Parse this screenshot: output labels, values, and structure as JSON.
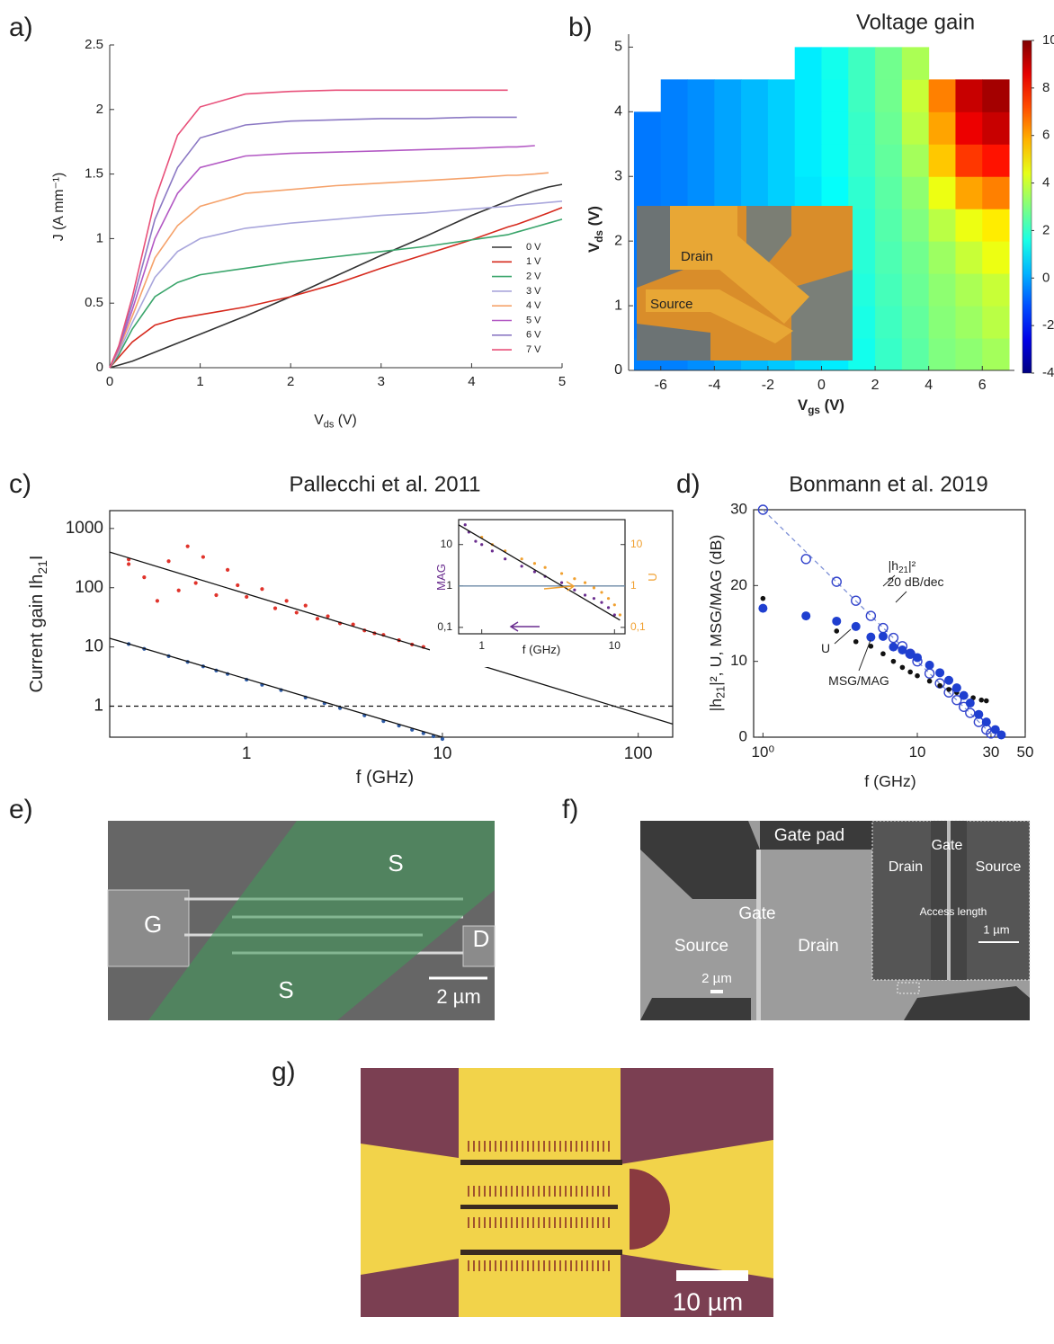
{
  "chart_data": [
    {
      "type": "line",
      "panel": "a)",
      "xlabel": [
        "V",
        "ds",
        " (V)"
      ],
      "ylabel": [
        "J (A mm⁻¹)"
      ],
      "xlim": [
        0,
        5
      ],
      "ylim": [
        0,
        2.5
      ],
      "xticks": [
        0,
        1,
        2,
        3,
        4,
        5
      ],
      "yticks": [
        0,
        0.5,
        1,
        1.5,
        2,
        2.5
      ],
      "legend": "lower right",
      "x": [
        0,
        0.1,
        0.25,
        0.5,
        0.75,
        1,
        1.5,
        2,
        2.5,
        3,
        3.5,
        4,
        4.4,
        4.5,
        4.7,
        4.85,
        5
      ],
      "series": [
        {
          "name": "0 V",
          "color": "#333333",
          "values": [
            0,
            0.02,
            0.05,
            0.12,
            0.19,
            0.26,
            0.4,
            0.55,
            0.71,
            0.87,
            1.02,
            1.18,
            1.29,
            1.32,
            1.37,
            1.4,
            1.42
          ]
        },
        {
          "name": "1 V",
          "color": "#d62a1e",
          "values": [
            0,
            0.08,
            0.2,
            0.33,
            0.38,
            0.41,
            0.47,
            0.55,
            0.65,
            0.77,
            0.88,
            0.99,
            1.09,
            1.11,
            1.16,
            1.2,
            1.24
          ]
        },
        {
          "name": "2 V",
          "color": "#3aa56b",
          "values": [
            0,
            0.1,
            0.3,
            0.55,
            0.66,
            0.72,
            0.77,
            0.82,
            0.86,
            0.9,
            0.94,
            0.99,
            1.03,
            1.05,
            1.09,
            1.12,
            1.15
          ]
        },
        {
          "name": "3 V",
          "color": "#a9a6dc",
          "values": [
            0,
            0.12,
            0.35,
            0.7,
            0.9,
            1.0,
            1.08,
            1.12,
            1.15,
            1.18,
            1.2,
            1.23,
            1.25,
            1.26,
            1.27,
            1.28,
            1.29
          ]
        },
        {
          "name": "4 V",
          "color": "#f5a26b",
          "values": [
            0,
            0.14,
            0.4,
            0.85,
            1.1,
            1.25,
            1.35,
            1.38,
            1.41,
            1.43,
            1.45,
            1.47,
            1.49,
            1.49,
            1.5,
            1.51,
            null
          ]
        },
        {
          "name": "5 V",
          "color": "#b359c4",
          "values": [
            0,
            0.15,
            0.45,
            1.0,
            1.35,
            1.55,
            1.64,
            1.66,
            1.67,
            1.68,
            1.69,
            1.7,
            1.71,
            1.71,
            1.72,
            null,
            null
          ]
        },
        {
          "name": "6 V",
          "color": "#8c79c4",
          "values": [
            0,
            0.16,
            0.5,
            1.15,
            1.55,
            1.78,
            1.88,
            1.91,
            1.92,
            1.93,
            1.93,
            1.94,
            1.94,
            1.94,
            null,
            null,
            null
          ]
        },
        {
          "name": "7 V",
          "color": "#e8507a",
          "values": [
            0,
            0.17,
            0.55,
            1.3,
            1.8,
            2.02,
            2.12,
            2.14,
            2.15,
            2.15,
            2.15,
            2.15,
            2.15,
            null,
            null,
            null,
            null
          ]
        }
      ]
    },
    {
      "type": "heatmap",
      "panel": "b)",
      "title": "Voltage gain",
      "xlabel": [
        "V",
        "gs",
        " (V)"
      ],
      "ylabel": [
        "V",
        "ds",
        " (V)"
      ],
      "xlim": [
        -7.2,
        7.2
      ],
      "ylim": [
        0,
        5.2
      ],
      "xticks": [
        -6,
        -4,
        -2,
        0,
        2,
        4,
        6
      ],
      "yticks": [
        0,
        1,
        2,
        3,
        4,
        5
      ],
      "colormap": "jet",
      "zlim": [
        -4,
        10
      ],
      "zticks": [
        -4,
        -2,
        0,
        2,
        4,
        6,
        8,
        10
      ],
      "x": [
        -6.5,
        -5.5,
        -4.5,
        -3.5,
        -2.5,
        -1.5,
        -0.5,
        0.5,
        1.5,
        2.5,
        3.5,
        4.5,
        5.5,
        6.5
      ],
      "y": [
        0.25,
        0.75,
        1.25,
        1.75,
        2.25,
        2.75,
        3.25,
        3.75,
        4.25,
        4.75
      ],
      "z": [
        [
          -0.5,
          -0.5,
          -0.3,
          0,
          0.3,
          0.5,
          0.8,
          1.0,
          1.5,
          2,
          2.5,
          3,
          3.2,
          3.5
        ],
        [
          -0.6,
          -0.5,
          -0.3,
          0,
          0.3,
          0.5,
          0.8,
          1.1,
          1.6,
          2.1,
          2.6,
          3.1,
          3.4,
          3.8
        ],
        [
          -0.6,
          -0.5,
          -0.3,
          0,
          0.3,
          0.6,
          0.9,
          1.2,
          1.7,
          2.2,
          2.7,
          3.2,
          3.6,
          4
        ],
        [
          -0.6,
          -0.5,
          -0.3,
          0,
          0.3,
          0.6,
          0.9,
          1.2,
          1.8,
          2.3,
          2.8,
          3.4,
          4,
          4.5
        ],
        [
          -0.6,
          -0.5,
          -0.3,
          0,
          0.3,
          0.6,
          0.9,
          1.3,
          1.8,
          2.4,
          3,
          3.8,
          4.5,
          5
        ],
        [
          -0.6,
          -0.5,
          -0.3,
          0,
          0.3,
          0.6,
          0.9,
          1.3,
          1.9,
          2.5,
          3.2,
          4.5,
          6,
          6.5
        ],
        [
          -0.6,
          -0.5,
          -0.3,
          0,
          0.3,
          0.6,
          1.0,
          1.4,
          2,
          2.6,
          3.5,
          5.5,
          7.5,
          8
        ],
        [
          -0.6,
          -0.5,
          -0.3,
          0,
          0.3,
          0.6,
          1.0,
          1.4,
          2,
          2.7,
          3.8,
          6,
          8.5,
          9
        ],
        [
          null,
          -0.5,
          -0.3,
          0,
          0.3,
          0.6,
          1.0,
          1.4,
          2.1,
          2.8,
          4,
          6.5,
          9,
          9.5
        ],
        [
          null,
          null,
          null,
          null,
          null,
          null,
          1.0,
          1.5,
          2.1,
          2.8,
          3.6,
          null,
          null,
          null
        ]
      ],
      "inset_labels": [
        "Drain",
        "Source"
      ]
    },
    {
      "type": "scatter",
      "panel": "c)",
      "title": "Pallecchi et al. 2011",
      "xlabel": [
        "f (GHz)"
      ],
      "ylabel": [
        "Current gain Ih",
        "21",
        "I"
      ],
      "xscale": "log",
      "yscale": "log",
      "xlim": [
        0.2,
        150
      ],
      "ylim": [
        0.3,
        2000
      ],
      "xticks": [
        1,
        10,
        100
      ],
      "yticks": [
        1,
        10,
        100,
        1000
      ],
      "series": [
        {
          "mode": "points",
          "marker": "dot",
          "color": "#e0332b",
          "x": [
            0.25,
            0.25,
            0.3,
            0.35,
            0.4,
            0.45,
            0.5,
            0.55,
            0.6,
            0.7,
            0.8,
            0.9,
            1.0,
            1.2,
            1.4,
            1.6,
            1.8,
            2.0,
            2.3,
            2.6,
            3,
            3.5,
            4,
            4.5,
            5,
            6,
            7,
            8,
            9,
            10,
            11,
            12
          ],
          "values": [
            300,
            250,
            150,
            60,
            280,
            90,
            500,
            120,
            330,
            75,
            200,
            110,
            70,
            95,
            45,
            60,
            38,
            50,
            30,
            33,
            25,
            24,
            19,
            17,
            16,
            13,
            11,
            10,
            8.5,
            8,
            7.3,
            6.8
          ]
        },
        {
          "mode": "points",
          "marker": "dot",
          "color": "#2f5da8",
          "x": [
            0.25,
            0.3,
            0.4,
            0.5,
            0.6,
            0.7,
            0.8,
            1,
            1.2,
            1.5,
            2,
            2.5,
            3,
            4,
            5,
            6,
            7,
            8,
            9,
            10
          ],
          "values": [
            11.2,
            9.3,
            7,
            5.6,
            4.7,
            4,
            3.5,
            2.8,
            2.3,
            1.87,
            1.4,
            1.12,
            0.93,
            0.7,
            0.56,
            0.47,
            0.4,
            0.35,
            0.31,
            0.28
          ]
        },
        {
          "mode": "line",
          "color": "#111111",
          "x": [
            0.2,
            150
          ],
          "values": [
            400,
            0.5
          ]
        },
        {
          "mode": "line",
          "color": "#111111",
          "x": [
            0.2,
            10
          ],
          "values": [
            14,
            0.3
          ]
        },
        {
          "mode": "line",
          "dash": true,
          "color": "#111111",
          "x": [
            0.2,
            150
          ],
          "values": [
            1,
            1
          ]
        }
      ]
    },
    {
      "type": "scatter",
      "xlabel": [
        "f (GHz)"
      ],
      "ylabel": [
        "MAG"
      ],
      "y2label": [
        "U"
      ],
      "xscale": "log",
      "yscale": "log",
      "xlim": [
        0.67,
        12
      ],
      "ylim": [
        0.07,
        40
      ],
      "y2lim": [
        0.07,
        40
      ],
      "xticks": [
        1,
        10
      ],
      "yticks": [
        {
          "value": 0.1,
          "label": "0,1"
        },
        1,
        10
      ],
      "y2ticks": [
        {
          "value": 0.1,
          "label": "0,1"
        },
        1,
        10
      ],
      "series": [
        {
          "mode": "line",
          "color": "#6b8aa6",
          "x": [
            0.67,
            12
          ],
          "values": [
            1,
            1
          ]
        },
        {
          "mode": "points",
          "marker": "dot",
          "color": "#6a2d8f",
          "x": [
            0.75,
            0.8,
            0.9,
            1.0,
            1.2,
            1.5,
            2,
            2.5,
            3,
            4,
            5,
            6,
            7,
            8,
            9,
            10
          ],
          "values": [
            30,
            20,
            12,
            10,
            7,
            4.5,
            3,
            2.2,
            1.7,
            1.2,
            0.8,
            0.6,
            0.5,
            0.4,
            0.3,
            0.2
          ]
        },
        {
          "mode": "points",
          "marker": "dot",
          "axis": "y2",
          "color": "#f0a030",
          "x": [
            1.0,
            1.2,
            1.5,
            2,
            2.5,
            3,
            4,
            5,
            6,
            7,
            8,
            9,
            10,
            11
          ],
          "values": [
            15,
            10,
            7,
            4.5,
            3.5,
            2.8,
            2,
            1.5,
            1.2,
            0.9,
            0.7,
            0.5,
            0.35,
            0.2
          ]
        },
        {
          "mode": "line",
          "color": "#111111",
          "x": [
            0.67,
            11
          ],
          "values": [
            30,
            0.15
          ]
        }
      ]
    },
    {
      "type": "scatter",
      "panel": "d)",
      "title": "Bonmann et al. 2019",
      "xlabel": [
        "f (GHz)"
      ],
      "ylabel": [
        "|h",
        "21",
        "|², U, MSG/MAG (dB)"
      ],
      "xscale": "log",
      "xlim": [
        0.87,
        50
      ],
      "ylim": [
        0,
        30
      ],
      "xticks": [
        {
          "value": 1,
          "label": "10⁰"
        },
        10,
        30,
        50
      ],
      "yticks": [
        0,
        10,
        20,
        30
      ],
      "series": [
        {
          "mode": "line",
          "dash": true,
          "color": "#7c8fd6",
          "x": [
            1,
            31.6
          ],
          "values": [
            30,
            0
          ]
        },
        {
          "mode": "points",
          "marker": "circle",
          "color": "#3344cc",
          "x": [
            1,
            1.9,
            3,
            4,
            5,
            6,
            7,
            8,
            9,
            10,
            12,
            14,
            16,
            18,
            20,
            22,
            25,
            28,
            30
          ],
          "values": [
            30,
            23.5,
            20.5,
            18,
            16,
            14.4,
            13.1,
            12,
            11,
            10,
            8.4,
            7.1,
            5.9,
            4.9,
            4,
            3.2,
            2,
            1,
            0.5
          ]
        },
        {
          "mode": "points",
          "marker": "dot",
          "color": "#111111",
          "x": [
            1,
            1.9,
            3,
            4,
            5,
            6,
            7,
            8,
            9,
            10,
            12,
            14,
            16,
            18,
            20,
            23,
            26,
            28
          ],
          "values": [
            18.3,
            15.8,
            14,
            12.6,
            12,
            11,
            10,
            9.2,
            8.6,
            8.1,
            7.4,
            6.8,
            6.3,
            5.9,
            5.6,
            5.2,
            4.9,
            4.8
          ]
        },
        {
          "mode": "points",
          "marker": "filled",
          "color": "#1f3fd0",
          "x": [
            1,
            1.9,
            3,
            4,
            5,
            6,
            7,
            8,
            9,
            10,
            12,
            14,
            16,
            18,
            20,
            22,
            25,
            28,
            32,
            35
          ],
          "values": [
            17,
            16,
            15.3,
            14.6,
            13.2,
            13.3,
            11.9,
            11.5,
            11,
            10.5,
            9.5,
            8.5,
            7.5,
            6.5,
            5.5,
            4.5,
            3,
            2,
            1,
            0.3
          ]
        }
      ],
      "annotations": [
        [
          "|h",
          "21",
          "|²"
        ],
        [
          "20 dB/dec"
        ],
        [
          "U"
        ],
        [
          "MSG/MAG"
        ]
      ]
    }
  ],
  "images": [
    {
      "panel": "e)",
      "labels": [
        "G",
        "S",
        "S",
        "D",
        "2 µm"
      ]
    },
    {
      "panel": "f)",
      "labels": [
        "Gate pad",
        "Gate",
        "Source",
        "Drain",
        "2 µm",
        "Gate",
        "Drain",
        "Source",
        "Access length",
        "1 µm"
      ]
    },
    {
      "panel": "g)",
      "labels": [
        "10 µm"
      ]
    }
  ]
}
